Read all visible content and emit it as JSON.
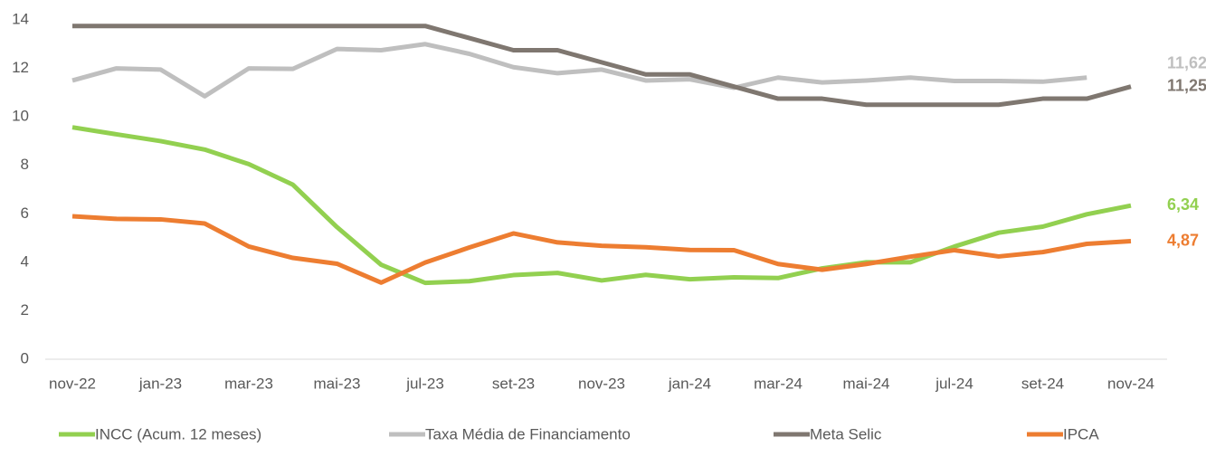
{
  "chart_data": {
    "type": "line",
    "categories": [
      "nov-22",
      null,
      "jan-23",
      null,
      "mar-23",
      null,
      "mai-23",
      null,
      "jul-23",
      null,
      "set-23",
      null,
      "nov-23",
      null,
      "jan-24",
      null,
      "mar-24",
      null,
      "mai-24",
      null,
      "jul-24",
      null,
      "set-24",
      null,
      "nov-24"
    ],
    "ylim": [
      0,
      14
    ],
    "yticks": [
      0,
      2,
      4,
      6,
      8,
      10,
      12,
      14
    ],
    "grid": false,
    "legend": "bottom",
    "series": [
      {
        "name": "INCC (Acum. 12 meses)",
        "color": "#92d050",
        "values": [
          9.57,
          9.28,
          9.0,
          8.65,
          8.05,
          7.2,
          5.45,
          3.9,
          3.15,
          3.22,
          3.47,
          3.56,
          3.25,
          3.48,
          3.3,
          3.38,
          3.35,
          3.75,
          4.0,
          4.0,
          4.65,
          5.22,
          5.47,
          5.98,
          6.34
        ],
        "value_labels": [
          null,
          null,
          null,
          null,
          null,
          null,
          null,
          null,
          null,
          null,
          null,
          null,
          null,
          null,
          null,
          null,
          null,
          null,
          null,
          null,
          null,
          null,
          null,
          null,
          "6,34"
        ]
      },
      {
        "name": "Taxa Média de Financiamento",
        "color": "#bfbfbf",
        "values": [
          11.5,
          12.0,
          11.95,
          10.85,
          12.0,
          11.98,
          12.8,
          12.75,
          13.0,
          12.6,
          12.05,
          11.8,
          11.95,
          11.5,
          11.55,
          11.2,
          11.62,
          11.42,
          11.5,
          11.62,
          11.48,
          11.48,
          11.45,
          11.62,
          null
        ],
        "value_labels": [
          null,
          null,
          null,
          null,
          null,
          null,
          null,
          null,
          null,
          null,
          null,
          null,
          null,
          null,
          null,
          null,
          null,
          null,
          null,
          null,
          null,
          null,
          null,
          "11,62",
          null
        ]
      },
      {
        "name": "Meta Selic",
        "color": "#7f7770",
        "values": [
          13.75,
          13.75,
          13.75,
          13.75,
          13.75,
          13.75,
          13.75,
          13.75,
          13.75,
          13.25,
          12.75,
          12.75,
          12.25,
          11.75,
          11.75,
          11.25,
          10.75,
          10.75,
          10.5,
          10.5,
          10.5,
          10.5,
          10.75,
          10.75,
          11.25
        ],
        "value_labels": [
          null,
          null,
          null,
          null,
          null,
          null,
          null,
          null,
          null,
          null,
          null,
          null,
          null,
          null,
          null,
          null,
          null,
          null,
          null,
          null,
          null,
          null,
          null,
          null,
          "11,25"
        ]
      },
      {
        "name": "IPCA",
        "color": "#ed7d31",
        "values": [
          5.9,
          5.79,
          5.77,
          5.6,
          4.65,
          4.18,
          3.94,
          3.16,
          3.99,
          4.61,
          5.19,
          4.82,
          4.68,
          4.62,
          4.51,
          4.5,
          3.93,
          3.69,
          3.93,
          4.23,
          4.5,
          4.24,
          4.42,
          4.76,
          4.87
        ],
        "value_labels": [
          null,
          null,
          null,
          null,
          null,
          null,
          null,
          null,
          null,
          null,
          null,
          null,
          null,
          null,
          null,
          null,
          null,
          null,
          null,
          null,
          null,
          null,
          null,
          null,
          "4,87"
        ]
      }
    ]
  }
}
